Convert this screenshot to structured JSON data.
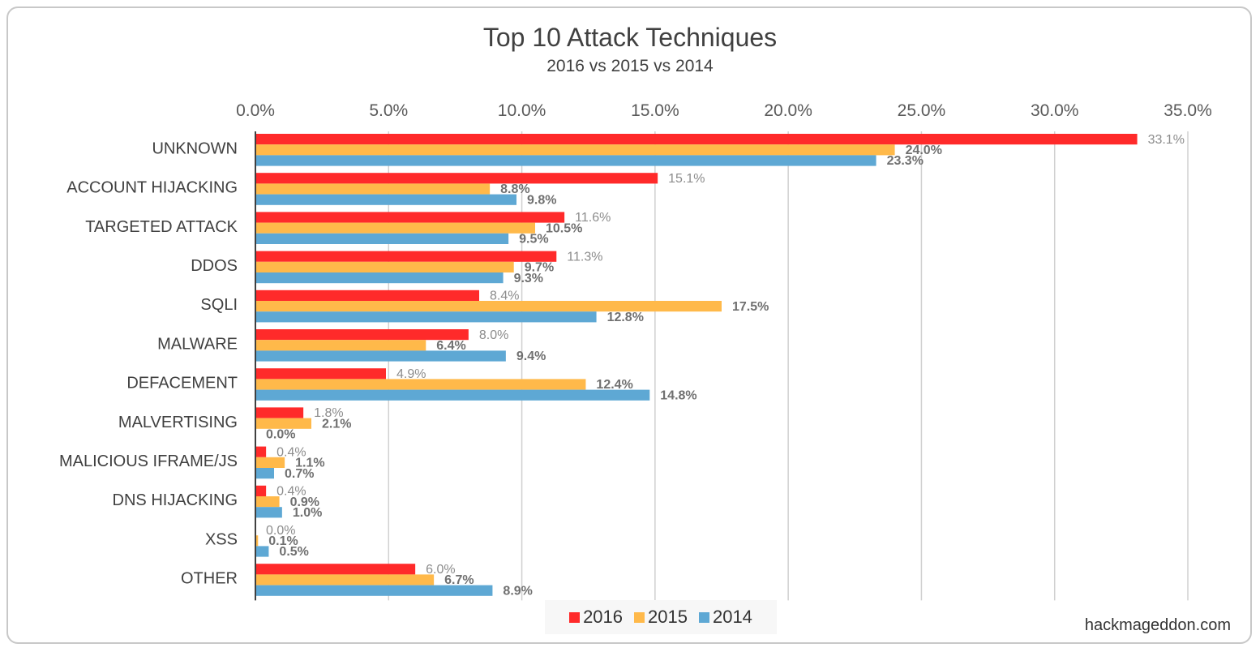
{
  "chart_data": {
    "type": "bar",
    "orientation": "horizontal",
    "title": "Top 10 Attack Techniques",
    "subtitle": "2016 vs 2015 vs 2014",
    "xlim": [
      0,
      35
    ],
    "xticks": [
      "0.0%",
      "5.0%",
      "10.0%",
      "15.0%",
      "20.0%",
      "25.0%",
      "30.0%",
      "35.0%"
    ],
    "tick_values": [
      0,
      5,
      10,
      15,
      20,
      25,
      30,
      35
    ],
    "grid": true,
    "legend_position": "bottom",
    "categories": [
      "UNKNOWN",
      "ACCOUNT HIJACKING",
      "TARGETED ATTACK",
      "DDOS",
      "SQLI",
      "MALWARE",
      "DEFACEMENT",
      "MALVERTISING",
      "MALICIOUS IFRAME/JS",
      "DNS HIJACKING",
      "XSS",
      "OTHER"
    ],
    "series": [
      {
        "name": "2016",
        "color": "#ff2a2a",
        "values": [
          33.1,
          15.1,
          11.6,
          11.3,
          8.4,
          8.0,
          4.9,
          1.8,
          0.4,
          0.4,
          0.0,
          6.0
        ],
        "labels": [
          "33.1%",
          "15.1%",
          "11.6%",
          "11.3%",
          "8.4%",
          "8.0%",
          "4.9%",
          "1.8%",
          "0.4%",
          "0.4%",
          "0.0%",
          "6.0%"
        ]
      },
      {
        "name": "2015",
        "color": "#ffb94a",
        "values": [
          24.0,
          8.8,
          10.5,
          9.7,
          17.5,
          6.4,
          12.4,
          2.1,
          1.1,
          0.9,
          0.1,
          6.7
        ],
        "labels": [
          "24.0%",
          "8.8%",
          "10.5%",
          "9.7%",
          "17.5%",
          "6.4%",
          "12.4%",
          "2.1%",
          "1.1%",
          "0.9%",
          "0.1%",
          "6.7%"
        ]
      },
      {
        "name": "2014",
        "color": "#5ea8d4",
        "values": [
          23.3,
          9.8,
          9.5,
          9.3,
          12.8,
          9.4,
          14.8,
          0.0,
          0.7,
          1.0,
          0.5,
          8.9
        ],
        "labels": [
          "23.3%",
          "9.8%",
          "9.5%",
          "9.3%",
          "12.8%",
          "9.4%",
          "14.8%",
          "0.0%",
          "0.7%",
          "1.0%",
          "0.5%",
          "8.9%"
        ]
      }
    ]
  },
  "credit": "hackmageddon.com"
}
